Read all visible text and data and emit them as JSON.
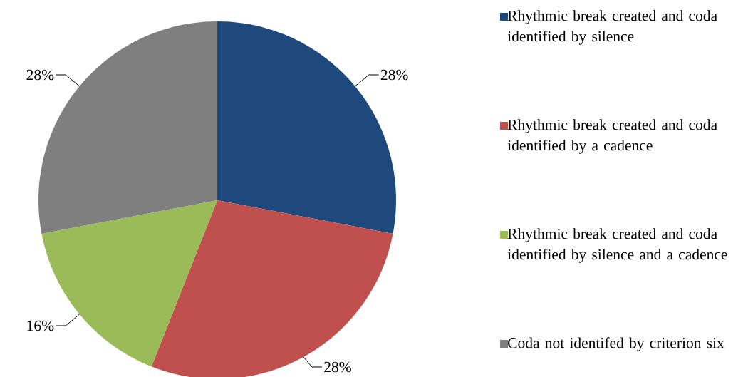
{
  "chart_data": {
    "type": "pie",
    "categories": [
      "Rhythmic break created and coda identified by silence",
      "Rhythmic break created and coda identified by a cadence",
      "Rhythmic break created and coda identified by silence and a cadence",
      "Coda not identifed by criterion six"
    ],
    "values": [
      28,
      28,
      16,
      28
    ],
    "value_labels": [
      "28%",
      "28%",
      "16%",
      "28%"
    ],
    "colors": [
      "#1f497d",
      "#c0504d",
      "#9bbb59",
      "#7f7f7f"
    ],
    "legend": "right"
  }
}
